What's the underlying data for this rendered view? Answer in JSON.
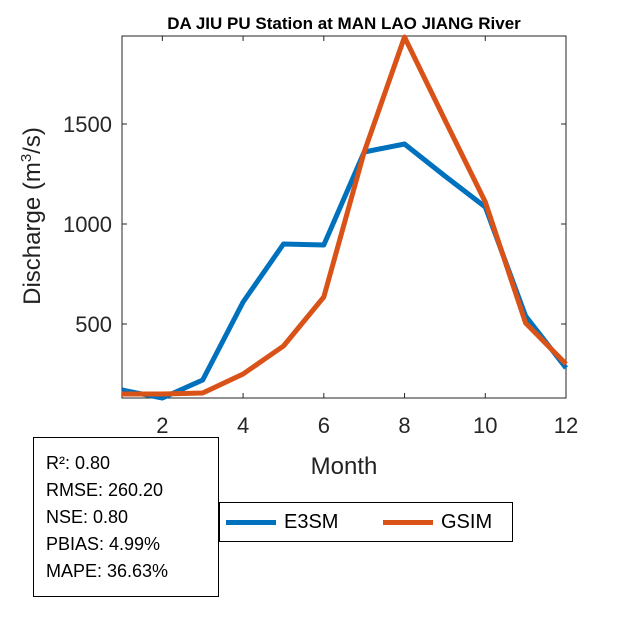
{
  "chart_data": {
    "type": "line",
    "title": "DA JIU PU  Station at  MAN LAO JIANG  River",
    "xlabel": "Month",
    "ylabel": "Discharge (m3/s)",
    "ylabel_base": "Discharge (m",
    "ylabel_sup": "3",
    "ylabel_tail": "/s)",
    "xlim": [
      1,
      12
    ],
    "ylim": [
      130,
      1940
    ],
    "x_ticks": [
      2,
      4,
      6,
      8,
      10,
      12
    ],
    "y_ticks": [
      500,
      1000,
      1500
    ],
    "x": [
      1,
      2,
      3,
      4,
      5,
      6,
      7,
      8,
      9,
      10,
      11,
      12
    ],
    "series": [
      {
        "name": "E3SM",
        "color": "#0072BD",
        "values": [
          170,
          130,
          220,
          610,
          900,
          895,
          1360,
          1400,
          1240,
          1085,
          540,
          280
        ]
      },
      {
        "name": "GSIM",
        "color": "#D95319",
        "values": [
          150,
          150,
          155,
          250,
          390,
          635,
          1360,
          1935,
          1520,
          1110,
          505,
          300
        ]
      }
    ],
    "legend_position": "below"
  },
  "stats": [
    {
      "label": "R²",
      "value": "0.80"
    },
    {
      "label": "RMSE",
      "value": "260.20"
    },
    {
      "label": "NSE",
      "value": "0.80"
    },
    {
      "label": "PBIAS",
      "value": "4.99%"
    },
    {
      "label": "MAPE",
      "value": "36.63%"
    }
  ],
  "stats_text": [
    "R²: 0.80",
    "RMSE: 260.20",
    "NSE: 0.80",
    "PBIAS: 4.99%",
    "MAPE: 36.63%"
  ]
}
